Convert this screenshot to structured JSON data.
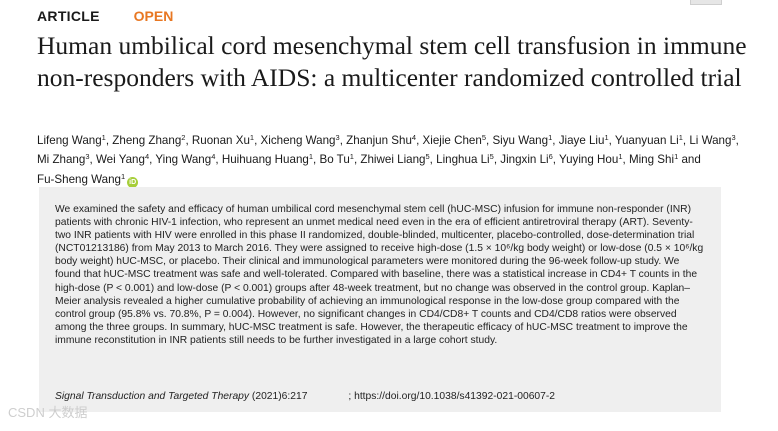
{
  "header": {
    "article_label": "ARTICLE",
    "open_label": "OPEN"
  },
  "title": "Human umbilical cord mesenchymal stem cell transfusion in immune non-responders with AIDS: a multicenter randomized controlled trial",
  "authors": [
    {
      "name": "Lifeng Wang",
      "sup": "1"
    },
    {
      "name": "Zheng Zhang",
      "sup": "2"
    },
    {
      "name": "Ruonan Xu",
      "sup": "1"
    },
    {
      "name": "Xicheng Wang",
      "sup": "3"
    },
    {
      "name": "Zhanjun Shu",
      "sup": "4"
    },
    {
      "name": "Xiejie Chen",
      "sup": "5"
    },
    {
      "name": "Siyu Wang",
      "sup": "1"
    },
    {
      "name": "Jiaye Liu",
      "sup": "1"
    },
    {
      "name": "Yuanyuan Li",
      "sup": "1"
    },
    {
      "name": "Li Wang",
      "sup": "3"
    },
    {
      "name": "Mi Zhang",
      "sup": "3"
    },
    {
      "name": "Wei Yang",
      "sup": "4"
    },
    {
      "name": "Ying Wang",
      "sup": "4"
    },
    {
      "name": "Huihuang Huang",
      "sup": "1"
    },
    {
      "name": "Bo Tu",
      "sup": "1"
    },
    {
      "name": "Zhiwei Liang",
      "sup": "5"
    },
    {
      "name": "Linghua Li",
      "sup": "5"
    },
    {
      "name": "Jingxin Li",
      "sup": "6"
    },
    {
      "name": "Yuying Hou",
      "sup": "1"
    },
    {
      "name": "Ming Shi",
      "sup": "1"
    },
    {
      "name": "Fu-Sheng Wang",
      "sup": "1"
    }
  ],
  "authors_conjunction": "and",
  "abstract": "We examined the safety and efficacy of human umbilical cord mesenchymal stem cell (hUC-MSC) infusion for immune non-responder (INR) patients with chronic HIV-1 infection, who represent an unmet medical need even in the era of efficient antiretroviral therapy (ART). Seventy-two INR patients with HIV were enrolled in this phase II randomized, double-blinded, multicenter, placebo-controlled, dose-determination trial (NCT01213186) from May 2013 to March 2016. They were assigned to receive high-dose (1.5 × 10⁶/kg body weight) or low-dose (0.5 × 10⁶/kg body weight) hUC-MSC, or placebo. Their clinical and immunological parameters were monitored during the 96-week follow-up study. We found that hUC-MSC treatment was safe and well-tolerated. Compared with baseline, there was a statistical increase in CD4+ T counts in the high-dose (P < 0.001) and low-dose (P < 0.001) groups after 48-week treatment, but no change was observed in the control group. Kaplan–Meier analysis revealed a higher cumulative probability of achieving an immunological response in the low-dose group compared with the control group (95.8% vs. 70.8%, P = 0.004). However, no significant changes in CD4/CD8+ T counts and CD4/CD8 ratios were observed among the three groups. In summary, hUC-MSC treatment is safe. However, the therapeutic efficacy of hUC-MSC treatment to improve the immune reconstitution in INR patients still needs to be further investigated in a large cohort study.",
  "citation": {
    "journal": "Signal Transduction and Targeted Therapy",
    "volume": "(2021)6:217",
    "separator": ";",
    "doi": "https://doi.org/10.1038/s41392-021-00607-2"
  },
  "orcid_icon": "orcid-icon",
  "watermark": "CSDN 大数据"
}
